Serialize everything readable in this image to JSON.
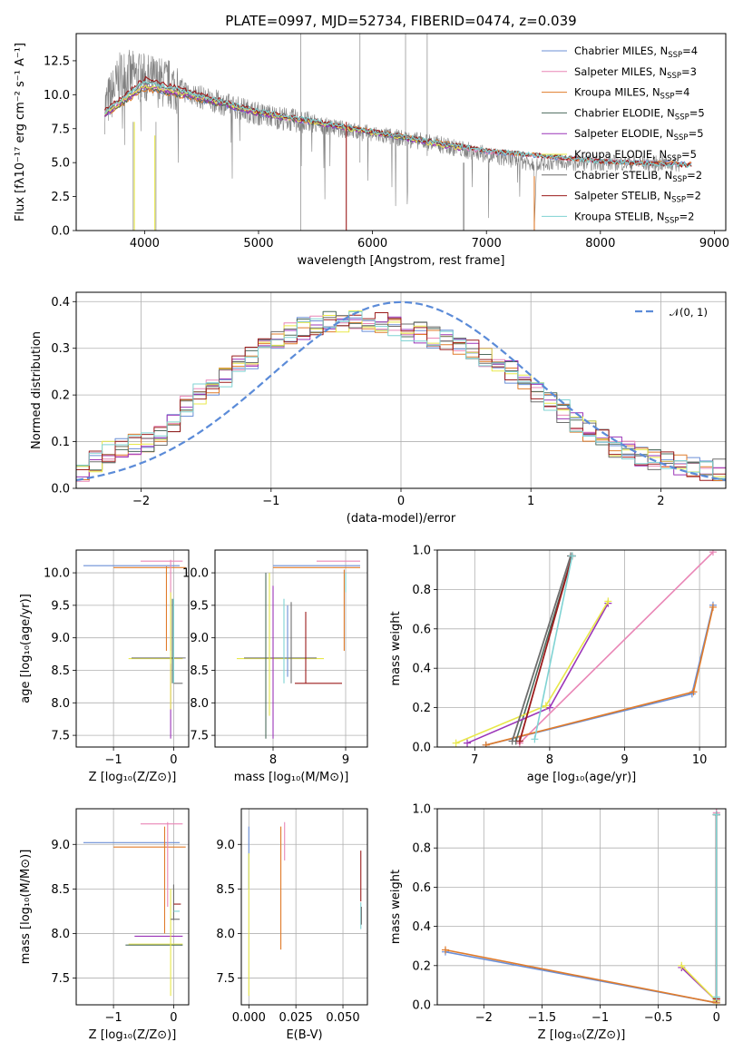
{
  "colors": [
    "#6b8fd6",
    "#e986b6",
    "#e07b2a",
    "#4d6b5e",
    "#9b35b8",
    "#e8e84a",
    "#6e6e6e",
    "#9b1c1c",
    "#7fd3d3"
  ],
  "chart_data": [
    {
      "id": "spectrum",
      "type": "line",
      "title": "PLATE=0997, MJD=52734, FIBERID=0474, z=0.039",
      "xlabel": "wavelength [Angstrom, rest frame]",
      "ylabel": "Flux [fλ10⁻¹⁷ erg cm⁻² s⁻¹ A⁻¹]",
      "xlim": [
        3400,
        9100
      ],
      "ylim": [
        0,
        14.5
      ],
      "xticks": [
        4000,
        5000,
        6000,
        7000,
        8000,
        9000
      ],
      "yticks": [
        0.0,
        2.5,
        5.0,
        7.5,
        10.0,
        12.5
      ],
      "grid": false,
      "legend_position": "top-right",
      "observed": {
        "x": [
          3650,
          3800,
          4000,
          4200,
          4500,
          5000,
          5500,
          6000,
          6500,
          7000,
          7400
        ],
        "y": [
          9.0,
          11.5,
          11.2,
          10.8,
          9.8,
          8.6,
          7.8,
          7.1,
          6.5,
          5.6,
          5.0
        ]
      },
      "series": [
        {
          "name": "Chabrier MILES, N",
          "sub": "SSP",
          "suffix": "=4",
          "model": {
            "x": [
              3650,
              4000,
              4500,
              5000,
              6000,
              7000,
              8000,
              8800
            ],
            "y": [
              8.5,
              10.5,
              9.6,
              8.6,
              7.2,
              5.8,
              5.1,
              4.9
            ]
          }
        },
        {
          "name": "Salpeter MILES, N",
          "sub": "SSP",
          "suffix": "=3",
          "model": {
            "x": [
              3650,
              4000,
              4500,
              5000,
              6000,
              7000,
              8000,
              8800
            ],
            "y": [
              8.6,
              10.6,
              9.7,
              8.6,
              7.2,
              5.8,
              5.1,
              4.9
            ]
          }
        },
        {
          "name": "Kroupa MILES, N",
          "sub": "SSP",
          "suffix": "=4",
          "model": {
            "x": [
              3650,
              4000,
              4500,
              5000,
              6000,
              7000,
              8000,
              8800
            ],
            "y": [
              8.4,
              10.4,
              9.6,
              8.7,
              7.3,
              5.9,
              5.1,
              4.9
            ]
          }
        },
        {
          "name": "Chabrier ELODIE, N",
          "sub": "SSP",
          "suffix": "=5",
          "model": {
            "x": [
              3650,
              4000,
              4500,
              5000,
              6000,
              6800
            ],
            "y": [
              8.5,
              10.5,
              9.6,
              8.6,
              7.2,
              6.0
            ]
          }
        },
        {
          "name": "Salpeter ELODIE, N",
          "sub": "SSP",
          "suffix": "=5",
          "model": {
            "x": [
              3650,
              4000,
              4500,
              5000,
              6000,
              6800
            ],
            "y": [
              8.5,
              10.6,
              9.7,
              8.6,
              7.2,
              6.0
            ]
          }
        },
        {
          "name": "Kroupa ELODIE, N",
          "sub": "SSP",
          "suffix": "=5",
          "model": {
            "x": [
              3650,
              4000,
              4500,
              5000,
              6000,
              6800
            ],
            "y": [
              8.6,
              10.7,
              9.8,
              8.7,
              7.2,
              6.0
            ]
          }
        },
        {
          "name": "Chabrier STELIB, N",
          "sub": "SSP",
          "suffix": "=2",
          "model": {
            "x": [
              3650,
              4000,
              4500,
              5000,
              6000,
              7000,
              8000,
              8800
            ],
            "y": [
              8.7,
              11.0,
              9.9,
              8.8,
              7.3,
              5.9,
              5.1,
              4.8
            ]
          }
        },
        {
          "name": "Salpeter STELIB, N",
          "sub": "SSP",
          "suffix": "=2",
          "model": {
            "x": [
              3650,
              4000,
              4500,
              5000,
              6000,
              7000,
              8000,
              8800
            ],
            "y": [
              8.8,
              11.2,
              10.0,
              8.8,
              7.3,
              5.9,
              5.1,
              4.8
            ]
          }
        },
        {
          "name": "Kroupa STELIB, N",
          "sub": "SSP",
          "suffix": "=2",
          "model": {
            "x": [
              3650,
              4000,
              4500,
              5000,
              6000,
              7000,
              8000,
              8800
            ],
            "y": [
              8.7,
              11.0,
              9.9,
              8.8,
              7.3,
              5.9,
              5.1,
              4.8
            ]
          }
        }
      ]
    },
    {
      "id": "residuals",
      "type": "line",
      "xlabel": "(data-model)/error",
      "ylabel": "Normed distribution",
      "xlim": [
        -2.5,
        2.5
      ],
      "ylim": [
        0,
        0.42
      ],
      "xticks": [
        -2,
        -1,
        0,
        1,
        2
      ],
      "yticks": [
        0.0,
        0.1,
        0.2,
        0.3,
        0.4
      ],
      "grid": true,
      "legend_position": "top-right",
      "gaussian_label": "𝒩(0, 1)",
      "histograms": [
        {
          "x": [
            -2.5,
            -2.2,
            -1.9,
            -1.6,
            -1.3,
            -1.0,
            -0.7,
            -0.4,
            -0.1,
            0.2,
            0.5,
            0.8,
            1.1,
            1.4,
            1.7,
            2.0,
            2.3
          ],
          "y": [
            0.03,
            0.09,
            0.1,
            0.19,
            0.25,
            0.31,
            0.35,
            0.36,
            0.35,
            0.33,
            0.3,
            0.26,
            0.2,
            0.13,
            0.08,
            0.06,
            0.04
          ]
        }
      ]
    },
    {
      "id": "age-Z",
      "type": "scatter",
      "xlabel": "Z [log₁₀(Z/Z⊙)]",
      "ylabel": "age  [log₁₀(age/yr)]",
      "xlim": [
        -1.62,
        0.25
      ],
      "ylim": [
        7.32,
        10.35
      ],
      "xticks": [
        -1,
        0
      ],
      "yticks": [
        7.5,
        8.0,
        8.5,
        9.0,
        9.5,
        10.0
      ],
      "grid": true
    },
    {
      "id": "age-mass",
      "type": "scatter",
      "xlabel": "mass [log₁₀(M/M⊙)]",
      "xlim": [
        7.2,
        9.3
      ],
      "ylim": [
        7.32,
        10.35
      ],
      "xticks": [
        8,
        9
      ],
      "yticks": [
        7.5,
        8.0,
        8.5,
        9.0,
        9.5,
        10.0
      ],
      "grid": true
    },
    {
      "id": "weight-age",
      "type": "line",
      "xlabel": "age  [log₁₀(age/yr)]",
      "ylabel": "mass weight",
      "xlim": [
        6.5,
        10.35
      ],
      "ylim": [
        0,
        1.0
      ],
      "xticks": [
        7,
        8,
        9,
        10
      ],
      "yticks": [
        0.0,
        0.2,
        0.4,
        0.6,
        0.8,
        1.0
      ],
      "grid": true,
      "series": [
        {
          "x": [
            7.15,
            9.9,
            10.18
          ],
          "y": [
            0.01,
            0.27,
            0.72
          ]
        },
        {
          "x": [
            7.6,
            10.18
          ],
          "y": [
            0.02,
            0.99
          ]
        },
        {
          "x": [
            7.15,
            9.92,
            10.18
          ],
          "y": [
            0.01,
            0.28,
            0.71
          ]
        },
        {
          "x": [
            7.55,
            8.3
          ],
          "y": [
            0.03,
            0.97
          ]
        },
        {
          "x": [
            6.9,
            8.0,
            8.78
          ],
          "y": [
            0.02,
            0.2,
            0.73
          ]
        },
        {
          "x": [
            6.75,
            7.95,
            8.78
          ],
          "y": [
            0.02,
            0.21,
            0.74
          ]
        },
        {
          "x": [
            7.5,
            8.28
          ],
          "y": [
            0.03,
            0.97
          ]
        },
        {
          "x": [
            7.6,
            8.3
          ],
          "y": [
            0.03,
            0.97
          ]
        },
        {
          "x": [
            7.8,
            8.3
          ],
          "y": [
            0.04,
            0.97
          ]
        }
      ]
    },
    {
      "id": "mass-Z",
      "type": "scatter",
      "xlabel": "Z [log₁₀(Z/Z⊙)]",
      "ylabel": "mass [log₁₀(M/M⊙)]",
      "xlim": [
        -1.62,
        0.25
      ],
      "ylim": [
        7.2,
        9.4
      ],
      "xticks": [
        -1,
        0
      ],
      "yticks": [
        7.5,
        8.0,
        8.5,
        9.0
      ],
      "grid": true
    },
    {
      "id": "mass-EBV",
      "type": "scatter",
      "xlabel": "E(B-V)",
      "xlim": [
        -0.004,
        0.063
      ],
      "ylim": [
        7.2,
        9.4
      ],
      "xticks": [
        0.0,
        0.025,
        0.05
      ],
      "xticklabels": [
        "0.000",
        "0.025",
        "0.050"
      ],
      "yticks": [
        7.5,
        8.0,
        8.5,
        9.0
      ],
      "grid": true
    },
    {
      "id": "weight-Z",
      "type": "line",
      "xlabel": "Z [log₁₀(Z/Z⊙)]",
      "ylabel": "mass weight",
      "xlim": [
        -2.4,
        0.08
      ],
      "ylim": [
        0,
        1.0
      ],
      "xticks": [
        -2.0,
        -1.5,
        -1.0,
        -0.5,
        0.0
      ],
      "yticks": [
        0.0,
        0.2,
        0.4,
        0.6,
        0.8,
        1.0
      ],
      "grid": true,
      "series": [
        {
          "x": [
            -2.33,
            0.0
          ],
          "y": [
            0.27,
            0.01
          ]
        },
        {
          "x": [
            0.0,
            0.0
          ],
          "y": [
            0.02,
            0.98
          ]
        },
        {
          "x": [
            -2.33,
            0.0
          ],
          "y": [
            0.28,
            0.01
          ]
        },
        {
          "x": [
            0.0,
            0.0
          ],
          "y": [
            0.03,
            0.97
          ]
        },
        {
          "x": [
            -0.3,
            0.0
          ],
          "y": [
            0.19,
            0.02
          ]
        },
        {
          "x": [
            -0.3,
            0.0
          ],
          "y": [
            0.2,
            0.02
          ]
        },
        {
          "x": [
            0.0,
            0.0
          ],
          "y": [
            0.03,
            0.97
          ]
        },
        {
          "x": [
            0.0,
            0.0
          ],
          "y": [
            0.03,
            0.97
          ]
        },
        {
          "x": [
            0.0,
            0.0
          ],
          "y": [
            0.04,
            0.97
          ]
        }
      ]
    }
  ]
}
